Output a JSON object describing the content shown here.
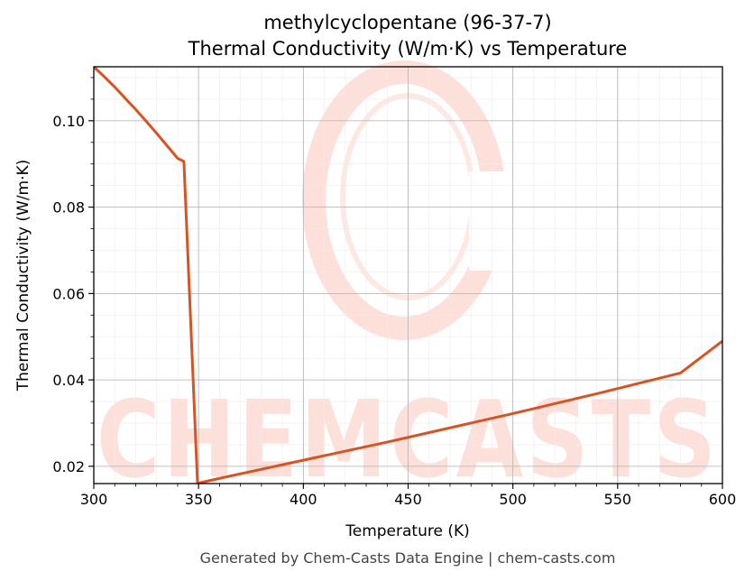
{
  "chart_data": {
    "type": "line",
    "title": "methylcyclopentane (96-37-7)",
    "subtitle": "Thermal Conductivity (W/m·K) vs Temperature",
    "xlabel": "Temperature (K)",
    "ylabel": "Thermal Conductivity (W/m·K)",
    "xlim": [
      300,
      600
    ],
    "ylim": [
      0.016,
      0.1125
    ],
    "xticks": [
      300,
      350,
      400,
      450,
      500,
      550,
      600
    ],
    "xtick_labels": [
      "300",
      "350",
      "400",
      "450",
      "500",
      "550",
      "600"
    ],
    "yticks": [
      0.02,
      0.04,
      0.06,
      0.08,
      0.1
    ],
    "ytick_labels": [
      "0.02",
      "0.04",
      "0.06",
      "0.08",
      "0.10"
    ],
    "grid": true,
    "line_color": "#d95322",
    "series": [
      {
        "x": [
          300,
          305,
          310,
          315,
          320,
          325,
          330,
          335,
          340,
          343,
          349.5,
          350,
          360,
          380,
          400,
          420,
          440,
          460,
          480,
          500,
          520,
          540,
          560,
          580,
          600
        ],
        "y": [
          0.1125,
          0.1102,
          0.1078,
          0.1052,
          0.1026,
          0.0999,
          0.0971,
          0.0942,
          0.0913,
          0.0906,
          0.016,
          0.0161,
          0.0172,
          0.0193,
          0.0214,
          0.0235,
          0.0256,
          0.0278,
          0.03,
          0.0322,
          0.0345,
          0.0368,
          0.0392,
          0.0416,
          0.049
        ]
      }
    ]
  },
  "footer": "Generated by Chem-Casts Data Engine | chem-casts.com",
  "watermark_text": "CHEMCASTS",
  "watermark_color": "#fde0da"
}
